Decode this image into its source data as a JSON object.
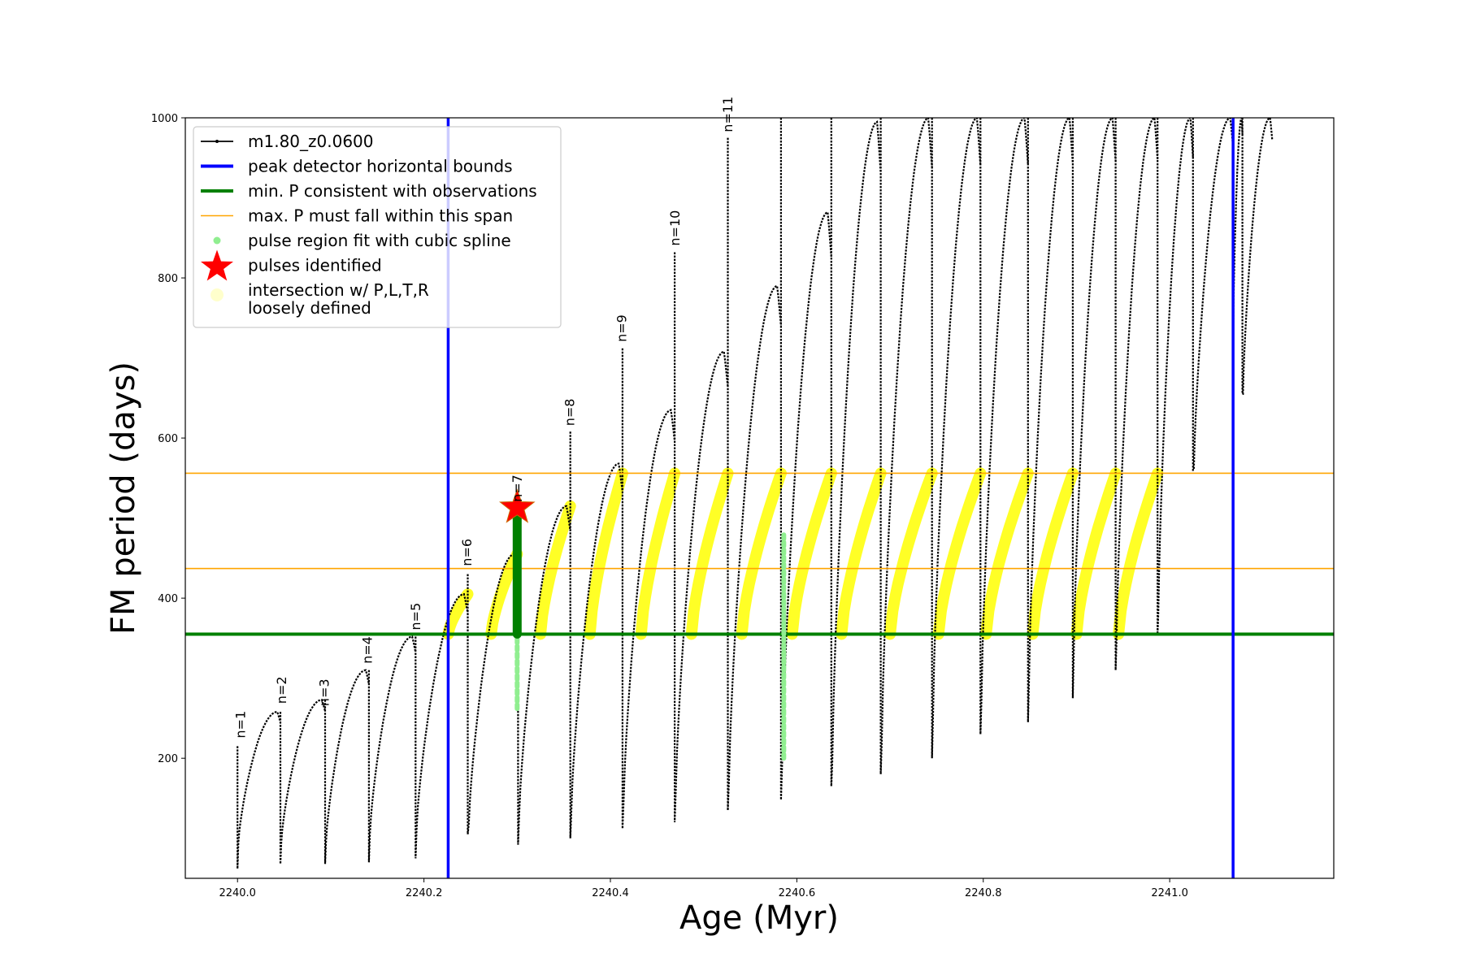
{
  "chart_data": {
    "type": "line",
    "title": "",
    "xlabel": "Age (Myr)",
    "ylabel": "FM period (days)",
    "xlim": [
      2239.944,
      2241.176
    ],
    "ylim": [
      50,
      1000
    ],
    "x_ticks": [
      2240.0,
      2240.2,
      2240.4,
      2240.6,
      2240.8,
      2241.0
    ],
    "x_tick_labels": [
      "2240.0",
      "2240.2",
      "2240.4",
      "2240.6",
      "2240.8",
      "2241.0"
    ],
    "y_ticks": [
      200,
      400,
      600,
      800,
      1000
    ],
    "y_tick_labels": [
      "200",
      "400",
      "600",
      "800",
      "1000"
    ],
    "legend_position": "upper-left",
    "legend": [
      {
        "label": "m1.80_z0.0600",
        "style": "black-line-dots",
        "color": "#000000"
      },
      {
        "label": "peak detector horizontal bounds",
        "style": "line",
        "color": "#0000ff"
      },
      {
        "label": "min. P consistent with observations",
        "style": "line",
        "color": "#008000"
      },
      {
        "label": "max. P must fall within this span",
        "style": "thin-line",
        "color": "#ffa500"
      },
      {
        "label": "pulse region fit with cubic spline",
        "style": "dot",
        "color": "#90ee90"
      },
      {
        "label": "pulses identified",
        "style": "star",
        "color": "#ff0000"
      },
      {
        "label": "intersection w/ P,L,T,R\nloosely defined",
        "style": "big-dot",
        "color": "#ffffcc"
      }
    ],
    "vertical_lines": [
      {
        "x": 2240.226,
        "color": "#0000ff",
        "name": "peak detector horizontal bounds"
      },
      {
        "x": 2241.068,
        "color": "#0000ff",
        "name": "peak detector horizontal bounds"
      }
    ],
    "horizontal_lines": [
      {
        "y": 355,
        "color": "#008000",
        "name": "min. P consistent with observations"
      },
      {
        "y": 437,
        "color": "#ffa500",
        "name": "max. P lower bound"
      },
      {
        "y": 556,
        "color": "#ffa500",
        "name": "max. P upper bound"
      }
    ],
    "series": [
      {
        "name": "m1.80_z0.0600",
        "color": "#000000",
        "cycles": [
          {
            "start": 2240.0,
            "end": 2240.046,
            "low": 95,
            "peak": 258,
            "spike_top": 215,
            "spike_bottom": 62
          },
          {
            "start": 2240.046,
            "end": 2240.094,
            "low": 95,
            "peak": 273,
            "spike_top": 258,
            "spike_bottom": 68
          },
          {
            "start": 2240.094,
            "end": 2240.141,
            "low": 95,
            "peak": 310,
            "spike_top": 273,
            "spike_bottom": 68
          },
          {
            "start": 2240.141,
            "end": 2240.191,
            "low": 105,
            "peak": 352,
            "spike_top": 310,
            "spike_bottom": 70
          },
          {
            "start": 2240.191,
            "end": 2240.247,
            "low": 112,
            "peak": 405,
            "spike_top": 352,
            "spike_bottom": 75
          },
          {
            "start": 2240.247,
            "end": 2240.301,
            "low": 118,
            "peak": 455,
            "spike_top": 430,
            "spike_bottom": 105
          },
          {
            "start": 2240.301,
            "end": 2240.357,
            "low": 128,
            "peak": 515,
            "spike_top": 515,
            "spike_bottom": 92
          },
          {
            "start": 2240.357,
            "end": 2240.413,
            "low": 135,
            "peak": 568,
            "spike_top": 608,
            "spike_bottom": 100
          },
          {
            "start": 2240.413,
            "end": 2240.469,
            "low": 145,
            "peak": 635,
            "spike_top": 712,
            "spike_bottom": 112
          },
          {
            "start": 2240.469,
            "end": 2240.526,
            "low": 158,
            "peak": 708,
            "spike_top": 832,
            "spike_bottom": 120
          },
          {
            "start": 2240.526,
            "end": 2240.583,
            "low": 170,
            "peak": 790,
            "spike_top": 975,
            "spike_bottom": 135
          },
          {
            "start": 2240.583,
            "end": 2240.637,
            "low": 185,
            "peak": 882,
            "spike_top": 1000,
            "spike_bottom": 148
          },
          {
            "start": 2240.637,
            "end": 2240.69,
            "low": 195,
            "peak": 995,
            "spike_top": 1000,
            "spike_bottom": 165
          },
          {
            "start": 2240.69,
            "end": 2240.745,
            "low": 220,
            "peak": 1000,
            "spike_top": 1000,
            "spike_bottom": 180
          },
          {
            "start": 2240.745,
            "end": 2240.797,
            "low": 250,
            "peak": 1000,
            "spike_top": 1000,
            "spike_bottom": 200
          },
          {
            "start": 2240.797,
            "end": 2240.848,
            "low": 270,
            "peak": 1000,
            "spike_top": 1000,
            "spike_bottom": 230
          },
          {
            "start": 2240.848,
            "end": 2240.896,
            "low": 290,
            "peak": 1000,
            "spike_top": 1000,
            "spike_bottom": 245
          },
          {
            "start": 2240.896,
            "end": 2240.942,
            "low": 320,
            "peak": 1000,
            "spike_top": 1000,
            "spike_bottom": 275
          },
          {
            "start": 2240.942,
            "end": 2240.987,
            "low": 345,
            "peak": 1000,
            "spike_top": 1000,
            "spike_bottom": 310
          },
          {
            "start": 2240.987,
            "end": 2241.025,
            "low": 380,
            "peak": 1000,
            "spike_top": 1000,
            "spike_bottom": 355
          },
          {
            "start": 2241.025,
            "end": 2241.068,
            "low": 560,
            "peak": 1000,
            "spike_top": 1000,
            "spike_bottom": 560
          },
          {
            "start": 2241.068,
            "end": 2241.078,
            "low": 740,
            "peak": 1000,
            "spike_top": 1000,
            "spike_bottom": 740
          },
          {
            "start": 2241.078,
            "end": 2241.11,
            "low": 655,
            "peak": 1000,
            "spike_top": 1000,
            "spike_bottom": 655
          }
        ]
      },
      {
        "name": "pulse region fit with cubic spline",
        "color": "#90ee90",
        "segments": [
          {
            "x": 2240.3,
            "y_from": 262,
            "y_to": 500
          },
          {
            "x": 2240.586,
            "y_from": 200,
            "y_to": 480
          }
        ]
      },
      {
        "name": "pulses identified",
        "color": "#ff0000",
        "points": [
          {
            "x": 2240.3,
            "y": 513
          }
        ]
      },
      {
        "name": "intersection w/ P,L,T,R loosely defined",
        "color": "#ffff00",
        "regions": [
          {
            "x_from": 2240.226,
            "x_to": 2240.247,
            "y_from": 355,
            "y_to": 405
          },
          {
            "x_from": 2240.272,
            "x_to": 2240.3,
            "y_from": 355,
            "y_to": 455
          },
          {
            "x_from": 2240.325,
            "x_to": 2240.357,
            "y_from": 355,
            "y_to": 515
          },
          {
            "x_from": 2240.378,
            "x_to": 2240.413,
            "y_from": 355,
            "y_to": 556
          },
          {
            "x_from": 2240.433,
            "x_to": 2240.469,
            "y_from": 355,
            "y_to": 556
          },
          {
            "x_from": 2240.487,
            "x_to": 2240.526,
            "y_from": 355,
            "y_to": 556
          },
          {
            "x_from": 2240.541,
            "x_to": 2240.583,
            "y_from": 355,
            "y_to": 556
          },
          {
            "x_from": 2240.595,
            "x_to": 2240.637,
            "y_from": 355,
            "y_to": 556
          },
          {
            "x_from": 2240.648,
            "x_to": 2240.69,
            "y_from": 355,
            "y_to": 556
          },
          {
            "x_from": 2240.7,
            "x_to": 2240.745,
            "y_from": 355,
            "y_to": 556
          },
          {
            "x_from": 2240.752,
            "x_to": 2240.797,
            "y_from": 355,
            "y_to": 556
          },
          {
            "x_from": 2240.803,
            "x_to": 2240.848,
            "y_from": 355,
            "y_to": 556
          },
          {
            "x_from": 2240.853,
            "x_to": 2240.896,
            "y_from": 355,
            "y_to": 556
          },
          {
            "x_from": 2240.9,
            "x_to": 2240.942,
            "y_from": 355,
            "y_to": 556
          },
          {
            "x_from": 2240.945,
            "x_to": 2240.987,
            "y_from": 355,
            "y_to": 556
          }
        ]
      }
    ],
    "annotations": [
      {
        "text": "n=1",
        "x": 2240.008,
        "y": 225
      },
      {
        "text": "n=2",
        "x": 2240.052,
        "y": 268
      },
      {
        "text": "n=3",
        "x": 2240.098,
        "y": 265
      },
      {
        "text": "n=4",
        "x": 2240.144,
        "y": 318
      },
      {
        "text": "n=5",
        "x": 2240.196,
        "y": 360
      },
      {
        "text": "n=6",
        "x": 2240.251,
        "y": 440
      },
      {
        "text": "n=7",
        "x": 2240.305,
        "y": 520
      },
      {
        "text": "n=8",
        "x": 2240.361,
        "y": 615
      },
      {
        "text": "n=9",
        "x": 2240.417,
        "y": 720
      },
      {
        "text": "n=10",
        "x": 2240.474,
        "y": 840
      },
      {
        "text": "n=11",
        "x": 2240.531,
        "y": 982
      }
    ]
  }
}
